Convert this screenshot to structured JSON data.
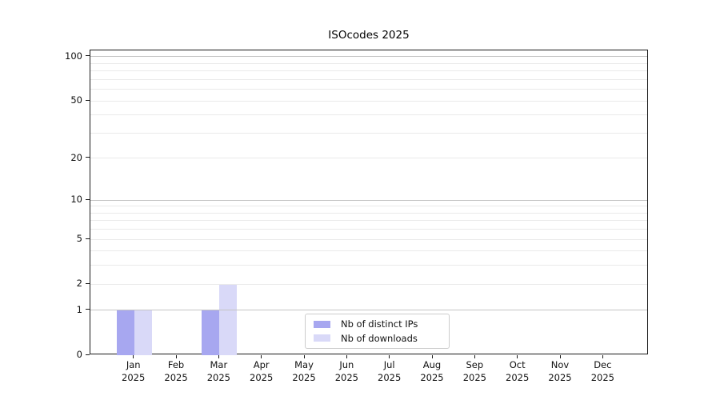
{
  "title": "ISOcodes 2025",
  "chart_data": {
    "type": "bar",
    "title": "ISOcodes 2025",
    "categories": [
      "Jan",
      "Feb",
      "Mar",
      "Apr",
      "May",
      "Jun",
      "Jul",
      "Aug",
      "Sep",
      "Oct",
      "Nov",
      "Dec"
    ],
    "category_year": "2025",
    "series": [
      {
        "name": "Nb of distinct IPs",
        "color": "#a7a7f0",
        "values": [
          1,
          0,
          1,
          0,
          0,
          0,
          0,
          0,
          0,
          0,
          0,
          0
        ]
      },
      {
        "name": "Nb of downloads",
        "color": "#d9d9f8",
        "values": [
          1,
          0,
          2,
          0,
          0,
          0,
          0,
          0,
          0,
          0,
          0,
          0
        ]
      }
    ],
    "y_axis": {
      "scale": "log10(1+y)",
      "tick_values": [
        0,
        1,
        2,
        5,
        10,
        20,
        50,
        100
      ],
      "tick_labels": [
        "0",
        "1",
        "2",
        "5",
        "10",
        "20",
        "50",
        "100"
      ],
      "max": 110,
      "major_gridlines": [
        1,
        10,
        100
      ],
      "minor_gridlines": [
        2,
        3,
        4,
        5,
        6,
        7,
        8,
        9,
        20,
        30,
        40,
        50,
        60,
        70,
        80,
        90
      ]
    },
    "legend": {
      "position": "lower center",
      "entries": [
        "Nb of distinct IPs",
        "Nb of downloads"
      ]
    },
    "grid": true
  },
  "colors": {
    "background": "#ffffff",
    "axis": "#1a1a1a",
    "text": "#111111",
    "major_grid": "#c3c3c3",
    "minor_grid": "#eaeaea",
    "legend_border": "#cccccc",
    "bar_distinct_ips": "#a7a7f0",
    "bar_downloads": "#d9d9f8"
  }
}
